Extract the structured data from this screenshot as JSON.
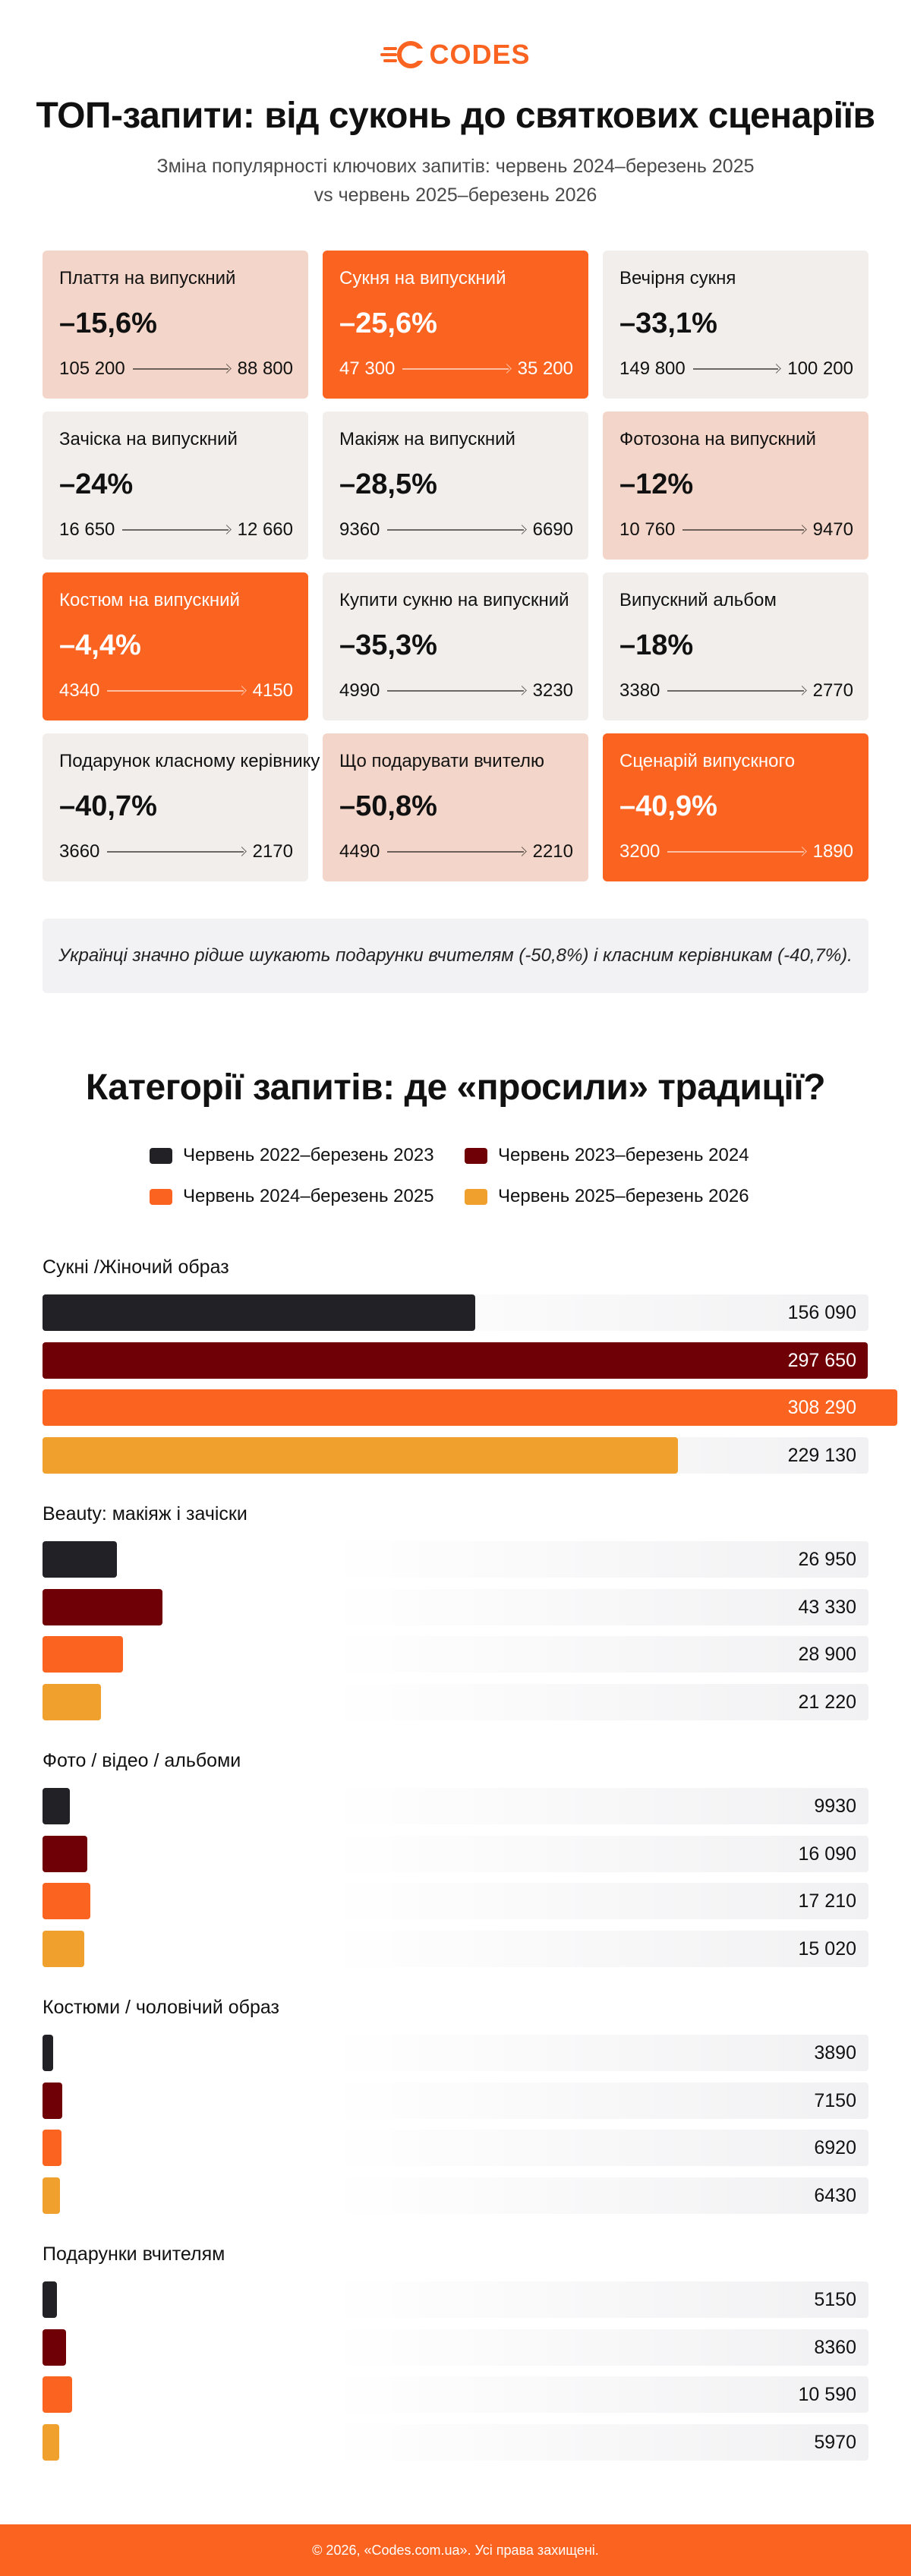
{
  "logo": {
    "text": "CODES",
    "color": "#fb6320"
  },
  "top": {
    "title": "ТОП-запити: від суконь до святкових сценаріїв",
    "subtitle_line1": "Зміна популярності ключових запитів: червень 2024–березень 2025",
    "subtitle_line2": "vs червень 2025–березень 2026",
    "cards": [
      {
        "name": "Плаття на випускний",
        "change": "–15,6%",
        "from": "105 200",
        "to": "88 800",
        "theme": "peach"
      },
      {
        "name": "Сукня на випускний",
        "change": "–25,6%",
        "from": "47 300",
        "to": "35 200",
        "theme": "orange"
      },
      {
        "name": "Вечірня сукня",
        "change": "–33,1%",
        "from": "149 800",
        "to": "100 200",
        "theme": "grey"
      },
      {
        "name": "Зачіска на випускний",
        "change": "–24%",
        "from": "16 650",
        "to": "12 660",
        "theme": "grey"
      },
      {
        "name": "Макіяж на випускний",
        "change": "–28,5%",
        "from": "9360",
        "to": "6690",
        "theme": "grey"
      },
      {
        "name": "Фотозона на випускний",
        "change": "–12%",
        "from": "10 760",
        "to": "9470",
        "theme": "peach"
      },
      {
        "name": "Костюм на випускний",
        "change": "–4,4%",
        "from": "4340",
        "to": "4150",
        "theme": "orange"
      },
      {
        "name": "Купити сукню на випускний",
        "change": "–35,3%",
        "from": "4990",
        "to": "3230",
        "theme": "grey"
      },
      {
        "name": "Випускний альбом",
        "change": "–18%",
        "from": "3380",
        "to": "2770",
        "theme": "grey"
      },
      {
        "name": "Подарунок класному керівнику",
        "change": "–40,7%",
        "from": "3660",
        "to": "2170",
        "theme": "grey"
      },
      {
        "name": "Що подарувати вчителю",
        "change": "–50,8%",
        "from": "4490",
        "to": "2210",
        "theme": "peach"
      },
      {
        "name": "Сценарій випускного",
        "change": "–40,9%",
        "from": "3200",
        "to": "1890",
        "theme": "orange"
      }
    ],
    "note": "Українці значно рідше шукають подарунки вчителям (-50,8%) і класним керівникам (-40,7%)."
  },
  "colors": {
    "orange": "#fb6320",
    "peach": "#f3d6c9",
    "grey": "#f2eeec"
  },
  "chart_data": {
    "type": "bar",
    "orientation": "horizontal",
    "title": "Категорії запитів: де «просили» традиції?",
    "legend_position": "top",
    "grid": false,
    "series": [
      {
        "name": "Червень 2022–березень 2023",
        "color": "#222226"
      },
      {
        "name": "Червень 2023–березень 2024",
        "color": "#6e0006"
      },
      {
        "name": "Червень 2024–березень 2025",
        "color": "#fb6320"
      },
      {
        "name": "Червень 2025–березень 2026",
        "color": "#efa02d"
      }
    ],
    "categories": [
      {
        "label": "Сукні /Жіночий образ",
        "values": [
          156090,
          297650,
          308290,
          229130
        ],
        "labels": [
          "156 090",
          "297 650",
          "308 290",
          "229 130"
        ]
      },
      {
        "label": "Beauty: макіяж і зачіски",
        "values": [
          26950,
          43330,
          28900,
          21220
        ],
        "labels": [
          "26 950",
          "43 330",
          "28 900",
          "21 220"
        ]
      },
      {
        "label": "Фото / відео / альбоми",
        "values": [
          9930,
          16090,
          17210,
          15020
        ],
        "labels": [
          "9930",
          "16 090",
          "17 210",
          "15 020"
        ]
      },
      {
        "label": "Костюми / чоловічий образ",
        "values": [
          3890,
          7150,
          6920,
          6430
        ],
        "labels": [
          "3890",
          "7150",
          "6920",
          "6430"
        ]
      },
      {
        "label": "Подарунки вчителям",
        "values": [
          5150,
          8360,
          10590,
          5970
        ],
        "labels": [
          "5150",
          "8360",
          "10 590",
          "5970"
        ]
      }
    ]
  },
  "footer": {
    "text": "© 2026, «Codes.com.ua». Усі права захищені."
  }
}
